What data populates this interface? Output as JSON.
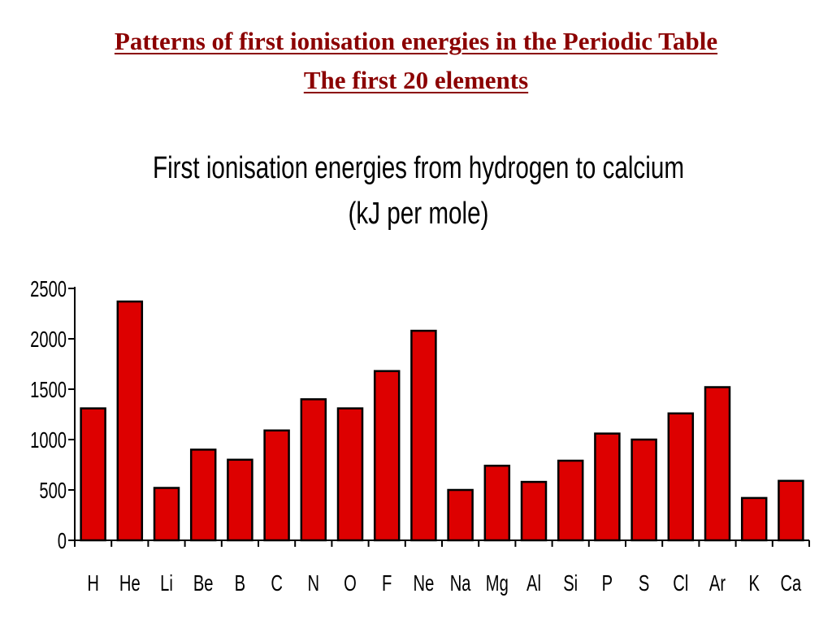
{
  "slide": {
    "title_line1": "Patterns of first ionisation energies in the Periodic Table",
    "title_line2": "The first 20 elements"
  },
  "colors": {
    "title": "#8b0000",
    "bar": "#dd0000",
    "bar_outline": "#000000"
  },
  "chart_data": {
    "type": "bar",
    "title": "First ionisation energies from hydrogen to calcium",
    "subtitle": "(kJ per mole)",
    "xlabel": "",
    "ylabel": "",
    "ylim": [
      0,
      2500
    ],
    "yticks": [
      0,
      500,
      1000,
      1500,
      2000,
      2500
    ],
    "grid": false,
    "categories": [
      "H",
      "He",
      "Li",
      "Be",
      "B",
      "C",
      "N",
      "O",
      "F",
      "Ne",
      "Na",
      "Mg",
      "Al",
      "Si",
      "P",
      "S",
      "Cl",
      "Ar",
      "K",
      "Ca"
    ],
    "values": [
      1310,
      2370,
      520,
      900,
      800,
      1090,
      1400,
      1310,
      1680,
      2080,
      500,
      740,
      580,
      790,
      1060,
      1000,
      1260,
      1520,
      420,
      590
    ]
  }
}
